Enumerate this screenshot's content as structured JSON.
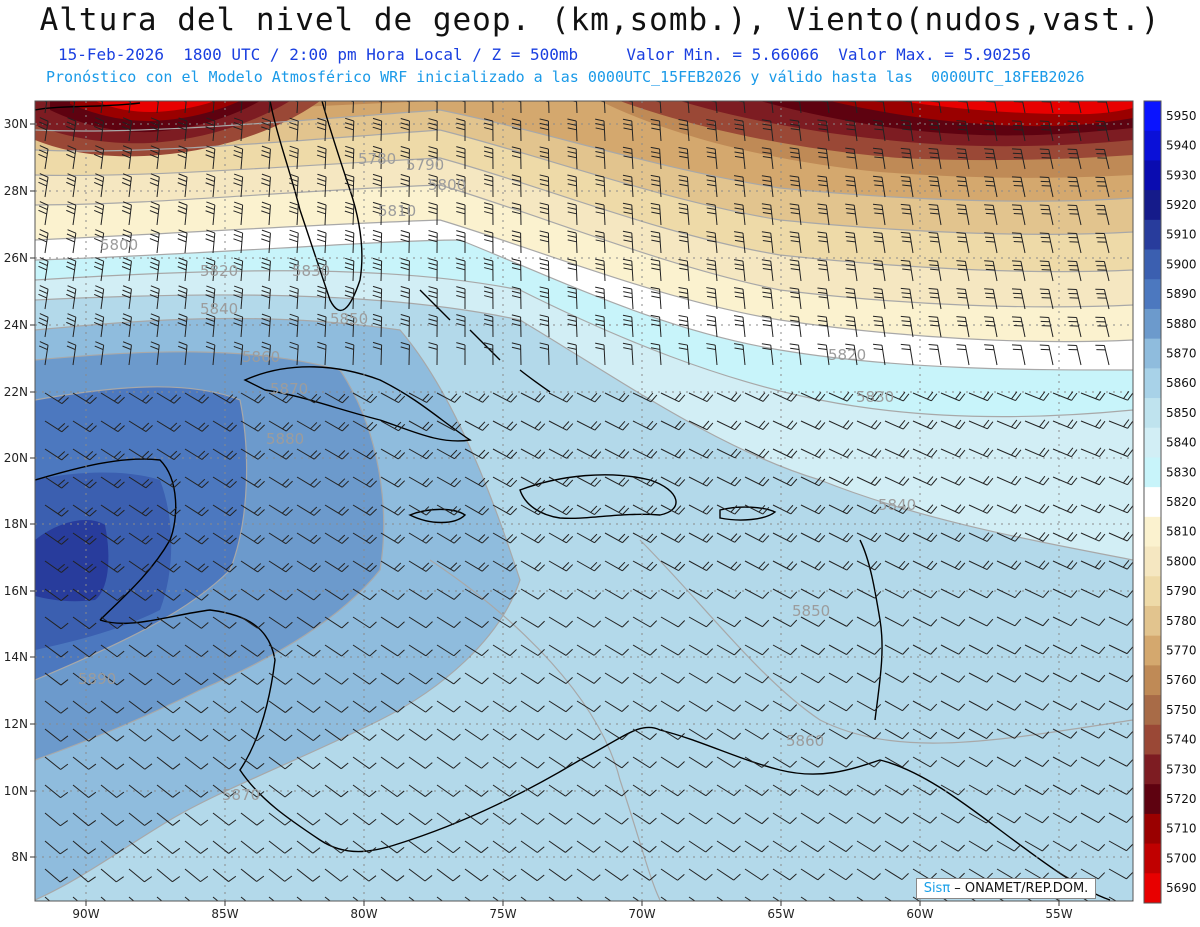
{
  "header": {
    "title": "Altura del nivel de geop. (km,somb.), Viento(nudos,vast.)",
    "date": "15-Feb-2026",
    "time": "1800 UTC / 2:00 pm Hora Local / Z = 500mb",
    "vmin": "Valor Min. = 5.66066",
    "vmax": "Valor Max. = 5.90256",
    "model_line": "Pronóstico con el Modelo Atmosférico WRF inicializado a las 0000UTC_15FEB2026 y válido hasta las  0000UTC_18FEB2026"
  },
  "map": {
    "lon_ticks": [
      "90W",
      "85W",
      "80W",
      "75W",
      "70W",
      "65W",
      "60W",
      "55W"
    ],
    "lat_ticks": [
      "30N",
      "28N",
      "26N",
      "24N",
      "22N",
      "20N",
      "18N",
      "16N",
      "14N",
      "12N",
      "10N",
      "8N"
    ],
    "contour_labels": [
      "5780",
      "5790",
      "5800",
      "5810",
      "5800",
      "5820",
      "5830",
      "5840",
      "5850",
      "5860",
      "5870",
      "5880",
      "5890",
      "5820",
      "5830",
      "5840",
      "5850",
      "5860",
      "5870"
    ],
    "colors": {
      "land": "#000000",
      "contour": "#a8a8a8",
      "grid": "#9a9a9a",
      "barb": "#222222"
    }
  },
  "colorbar": {
    "levels": [
      {
        "value": "5950",
        "color": "#0a14ff"
      },
      {
        "value": "5940",
        "color": "#0a10d8"
      },
      {
        "value": "5930",
        "color": "#0a0cb0"
      },
      {
        "value": "5920",
        "color": "#151b8a"
      },
      {
        "value": "5910",
        "color": "#283c9c"
      },
      {
        "value": "5900",
        "color": "#3b5fb0"
      },
      {
        "value": "5890",
        "color": "#4c78bf"
      },
      {
        "value": "5880",
        "color": "#6c9acc"
      },
      {
        "value": "5870",
        "color": "#8fbcdd"
      },
      {
        "value": "5860",
        "color": "#a8d2e8"
      },
      {
        "value": "5850",
        "color": "#bfe3ee"
      },
      {
        "value": "5840",
        "color": "#d2eef5"
      },
      {
        "value": "5830",
        "color": "#c8f4fa"
      },
      {
        "value": "5820",
        "color": "#ffffff"
      },
      {
        "value": "5810",
        "color": "#fbf2cf"
      },
      {
        "value": "5800",
        "color": "#f5e7c1"
      },
      {
        "value": "5790",
        "color": "#eedaa8"
      },
      {
        "value": "5780",
        "color": "#e2c48e"
      },
      {
        "value": "5770",
        "color": "#d4a86e"
      },
      {
        "value": "5760",
        "color": "#bf8a56"
      },
      {
        "value": "5750",
        "color": "#a86b47"
      },
      {
        "value": "5740",
        "color": "#9a4836"
      },
      {
        "value": "5730",
        "color": "#7d1c22"
      },
      {
        "value": "5720",
        "color": "#5e0210"
      },
      {
        "value": "5710",
        "color": "#9a0000"
      },
      {
        "value": "5700",
        "color": "#c00000"
      },
      {
        "value": "5690",
        "color": "#e80000"
      }
    ]
  },
  "credit": {
    "sis": "Sisπ",
    "org": " – ONAMET/REP.DOM."
  }
}
